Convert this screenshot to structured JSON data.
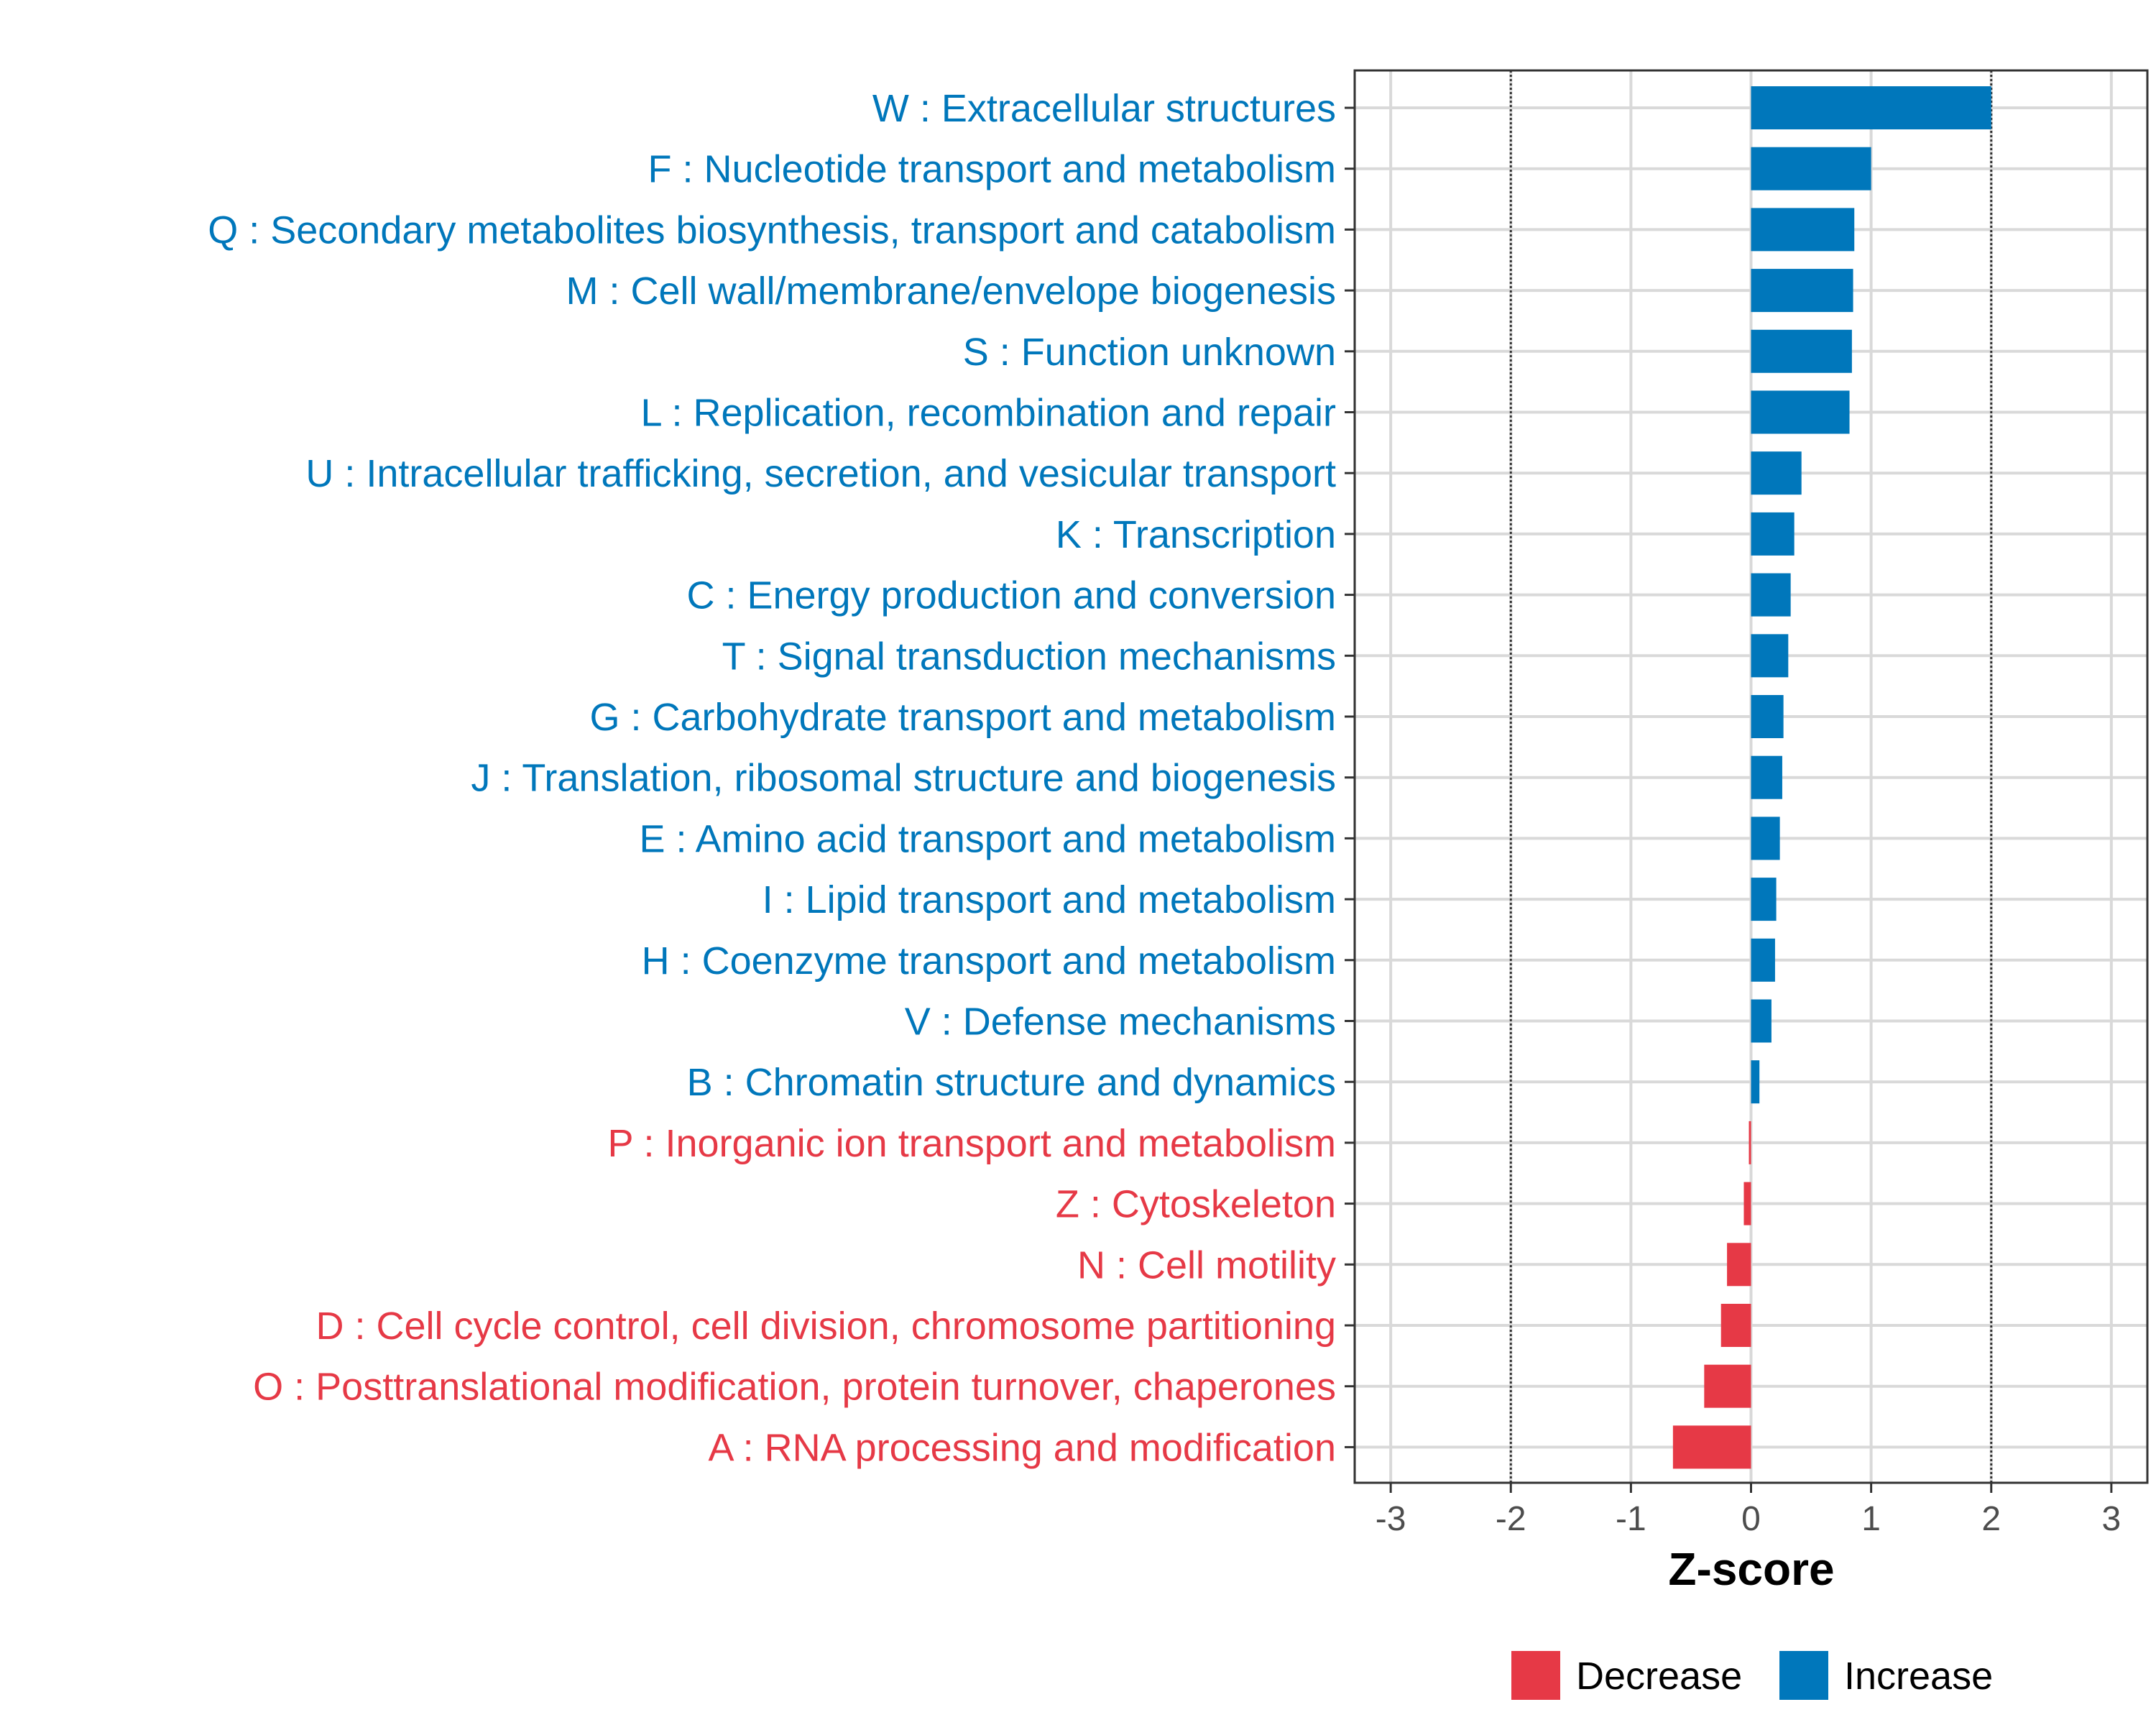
{
  "colors": {
    "increase": "#0077bb",
    "decrease": "#e63946",
    "grid": "#d9d9d9",
    "refline": "#333333",
    "panel_border": "#333333"
  },
  "chart_data": {
    "type": "bar",
    "orientation": "horizontal",
    "xlabel": "Z-score",
    "ylabel": "",
    "xlim": [
      -3.3,
      3.3
    ],
    "x_ticks": [
      -3,
      -2,
      -1,
      0,
      1,
      2,
      3
    ],
    "x_tick_labels": [
      "-3",
      "-2",
      "-1",
      "0",
      "1",
      "2",
      "3"
    ],
    "reference_lines": [
      -2,
      2
    ],
    "grid": true,
    "legend_position": "bottom",
    "legend": [
      {
        "label": "Decrease",
        "color_key": "decrease"
      },
      {
        "label": "Increase",
        "color_key": "increase"
      }
    ],
    "categories": [
      "W : Extracellular structures",
      "F : Nucleotide transport and metabolism",
      "Q : Secondary metabolites biosynthesis, transport and catabolism",
      "M : Cell wall/membrane/envelope biogenesis",
      "S : Function unknown",
      "L : Replication, recombination and repair",
      "U : Intracellular trafficking, secretion, and vesicular transport",
      "K : Transcription",
      "C : Energy production and conversion",
      "T : Signal transduction mechanisms",
      "G : Carbohydrate transport and metabolism",
      "J : Translation, ribosomal structure and biogenesis",
      "E : Amino acid transport and metabolism",
      "I : Lipid transport and metabolism",
      "H : Coenzyme transport and metabolism",
      "V : Defense mechanisms",
      "B : Chromatin structure and dynamics",
      "P : Inorganic ion transport and metabolism",
      "Z : Cytoskeleton",
      "N : Cell motility",
      "D : Cell cycle control, cell division, chromosome partitioning",
      "O : Posttranslational modification, protein turnover, chaperones",
      "A : RNA processing and modification"
    ],
    "values": [
      2.0,
      1.0,
      0.86,
      0.85,
      0.84,
      0.82,
      0.42,
      0.36,
      0.33,
      0.31,
      0.27,
      0.26,
      0.24,
      0.21,
      0.2,
      0.17,
      0.07,
      -0.01,
      -0.06,
      -0.2,
      -0.25,
      -0.39,
      -0.65
    ],
    "direction": [
      "Increase",
      "Increase",
      "Increase",
      "Increase",
      "Increase",
      "Increase",
      "Increase",
      "Increase",
      "Increase",
      "Increase",
      "Increase",
      "Increase",
      "Increase",
      "Increase",
      "Increase",
      "Increase",
      "Increase",
      "Decrease",
      "Decrease",
      "Decrease",
      "Decrease",
      "Decrease",
      "Decrease"
    ]
  }
}
